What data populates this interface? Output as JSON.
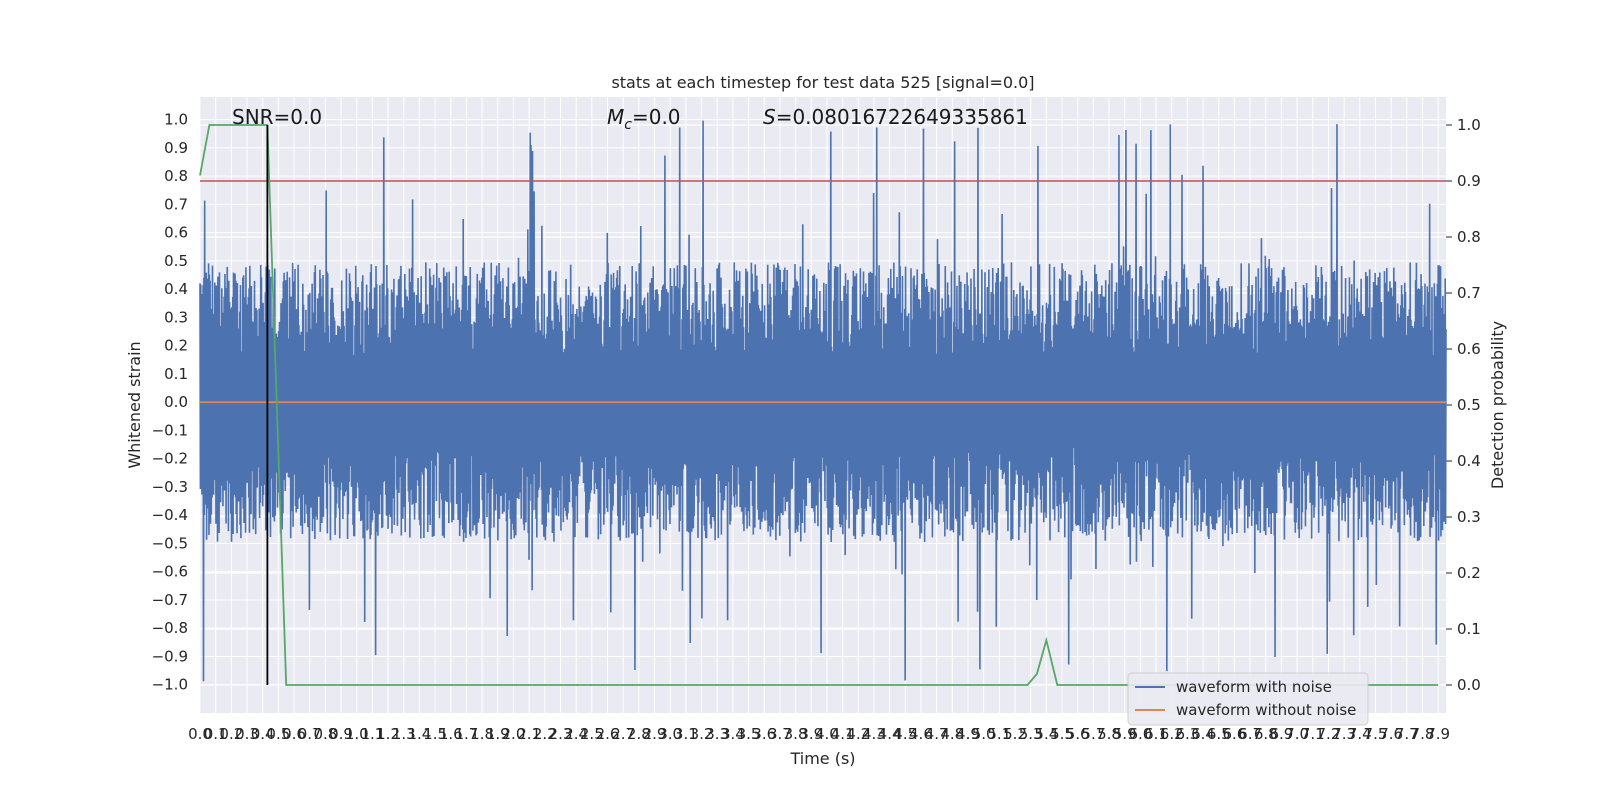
{
  "chart_data": {
    "type": "line",
    "title": "stats at each timestep for test data 525 [signal=0.0]",
    "xlabel": "Time (s)",
    "ylabel": "Whitened strain",
    "y2label": "Detection probability",
    "xlim": [
      0.0,
      7.95
    ],
    "ylim": [
      -1.1,
      1.08
    ],
    "y2lim": [
      -0.05,
      1.05
    ],
    "x_ticks": [
      "0.0",
      "0.1",
      "0.2",
      "0.3",
      "0.4",
      "0.5",
      "0.6",
      "0.7",
      "0.8",
      "0.9",
      "1.0",
      "1.1",
      "1.2",
      "1.3",
      "1.4",
      "1.5",
      "1.6",
      "1.7",
      "1.8",
      "1.9",
      "2.0",
      "2.1",
      "2.2",
      "2.3",
      "2.4",
      "2.5",
      "2.6",
      "2.7",
      "2.8",
      "2.9",
      "3.0",
      "3.1",
      "3.2",
      "3.3",
      "3.4",
      "3.5",
      "3.6",
      "3.7",
      "3.8",
      "3.9",
      "4.0",
      "4.1",
      "4.2",
      "4.3",
      "4.4",
      "4.5",
      "4.6",
      "4.7",
      "4.8",
      "4.9",
      "5.0",
      "5.1",
      "5.2",
      "5.3",
      "5.4",
      "5.5",
      "5.6",
      "5.7",
      "5.8",
      "5.9",
      "6.0",
      "6.1",
      "6.2",
      "6.3",
      "6.4",
      "6.5",
      "6.6",
      "6.7",
      "6.8",
      "6.9",
      "7.0",
      "7.1",
      "7.2",
      "7.3",
      "7.4",
      "7.5",
      "7.6",
      "7.7",
      "7.8",
      "7.9"
    ],
    "y_ticks": [
      "1.0",
      "0.9",
      "0.8",
      "0.7",
      "0.6",
      "0.5",
      "0.4",
      "0.3",
      "0.2",
      "0.1",
      "0.0",
      "−0.1",
      "−0.2",
      "−0.3",
      "−0.4",
      "−0.5",
      "−0.6",
      "−0.7",
      "−0.8",
      "−0.9",
      "−1.0"
    ],
    "y2_ticks": [
      "1.0",
      "0.9",
      "0.8",
      "0.7",
      "0.6",
      "0.5",
      "0.4",
      "0.3",
      "0.2",
      "0.1",
      "0.0"
    ],
    "annotations": {
      "snr": "SNR=0.0",
      "mc": "=0.0",
      "s": "=0.08016722649335861"
    },
    "threshold": {
      "y": 0.9,
      "color": "#c44e52"
    },
    "event_time": 0.43,
    "legend": {
      "placement": "bottom-right",
      "entries": [
        {
          "label": "waveform with noise",
          "color": "#4c72b0"
        },
        {
          "label": "waveform without noise",
          "color": "#dd8452"
        }
      ]
    },
    "noise_envelope": {
      "color": "#4c72b0",
      "approx_upper": 0.45,
      "approx_lower": -0.45,
      "max_abs_peak": 1.0
    },
    "series": [
      {
        "name": "waveform without noise",
        "color": "#dd8452",
        "axis": "left",
        "x": [
          0.0,
          7.95
        ],
        "y": [
          0.0,
          0.0
        ]
      },
      {
        "color": "#55a868",
        "axis": "right",
        "x": [
          0.0,
          0.06,
          0.11,
          0.43,
          0.55,
          0.86,
          0.92,
          5.28,
          5.34,
          5.4,
          5.47,
          7.9
        ],
        "y": [
          0.91,
          1.0,
          1.0,
          1.0,
          0.0,
          0.0,
          0.0,
          0.0,
          0.02,
          0.08,
          0.0,
          0.0
        ]
      }
    ],
    "colors": {
      "plot_bg": "#eaeaf2",
      "grid": "#ffffff",
      "event_line": "#000000"
    }
  }
}
